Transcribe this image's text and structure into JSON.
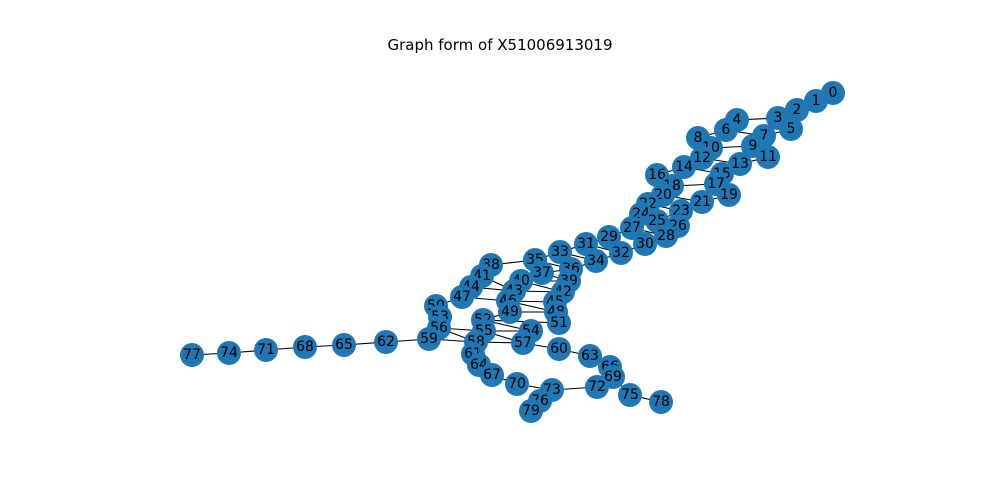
{
  "title": "Graph form of X51006913019",
  "graph": {
    "node_color": "#1f77b4",
    "edge_color": "#000000",
    "nodes": [
      "0",
      "1",
      "2",
      "3",
      "4",
      "5",
      "6",
      "7",
      "8",
      "9",
      "10",
      "11",
      "12",
      "13",
      "14",
      "15",
      "16",
      "17",
      "18",
      "19",
      "20",
      "21",
      "22",
      "23",
      "24",
      "25",
      "26",
      "27",
      "28",
      "29",
      "30",
      "31",
      "32",
      "33",
      "34",
      "35",
      "36",
      "37",
      "38",
      "39",
      "40",
      "41",
      "42",
      "43",
      "44",
      "45",
      "46",
      "47",
      "48",
      "49",
      "50",
      "51",
      "52",
      "53",
      "54",
      "55",
      "56",
      "57",
      "58",
      "59",
      "60",
      "61",
      "62",
      "63",
      "64",
      "65",
      "66",
      "67",
      "68",
      "69",
      "70",
      "71",
      "72",
      "73",
      "74",
      "75",
      "76",
      "77",
      "78",
      "79"
    ],
    "edges": [
      [
        "0",
        "1"
      ],
      [
        "1",
        "2"
      ],
      [
        "2",
        "3"
      ],
      [
        "3",
        "4"
      ],
      [
        "3",
        "5"
      ],
      [
        "4",
        "6"
      ],
      [
        "5",
        "7"
      ],
      [
        "6",
        "7"
      ],
      [
        "6",
        "8"
      ],
      [
        "7",
        "9"
      ],
      [
        "8",
        "10"
      ],
      [
        "9",
        "10"
      ],
      [
        "9",
        "11"
      ],
      [
        "10",
        "12"
      ],
      [
        "11",
        "13"
      ],
      [
        "12",
        "13"
      ],
      [
        "12",
        "14"
      ],
      [
        "13",
        "15"
      ],
      [
        "14",
        "15"
      ],
      [
        "14",
        "16"
      ],
      [
        "15",
        "17"
      ],
      [
        "16",
        "18"
      ],
      [
        "17",
        "18"
      ],
      [
        "17",
        "19"
      ],
      [
        "18",
        "20"
      ],
      [
        "19",
        "21"
      ],
      [
        "20",
        "21"
      ],
      [
        "20",
        "22"
      ],
      [
        "21",
        "23"
      ],
      [
        "22",
        "23"
      ],
      [
        "22",
        "24"
      ],
      [
        "23",
        "25"
      ],
      [
        "24",
        "25"
      ],
      [
        "24",
        "27"
      ],
      [
        "25",
        "26"
      ],
      [
        "26",
        "28"
      ],
      [
        "27",
        "28"
      ],
      [
        "27",
        "29"
      ],
      [
        "28",
        "30"
      ],
      [
        "29",
        "31"
      ],
      [
        "30",
        "32"
      ],
      [
        "31",
        "32"
      ],
      [
        "31",
        "33"
      ],
      [
        "32",
        "34"
      ],
      [
        "33",
        "34"
      ],
      [
        "33",
        "35"
      ],
      [
        "34",
        "36"
      ],
      [
        "35",
        "36"
      ],
      [
        "35",
        "38"
      ],
      [
        "36",
        "37"
      ],
      [
        "37",
        "39"
      ],
      [
        "38",
        "41"
      ],
      [
        "39",
        "40"
      ],
      [
        "40",
        "42"
      ],
      [
        "41",
        "43"
      ],
      [
        "42",
        "43"
      ],
      [
        "43",
        "44"
      ],
      [
        "41",
        "44"
      ],
      [
        "44",
        "47"
      ],
      [
        "42",
        "45"
      ],
      [
        "45",
        "46"
      ],
      [
        "46",
        "47"
      ],
      [
        "46",
        "48"
      ],
      [
        "47",
        "50"
      ],
      [
        "48",
        "49"
      ],
      [
        "48",
        "51"
      ],
      [
        "49",
        "52"
      ],
      [
        "50",
        "53"
      ],
      [
        "51",
        "52"
      ],
      [
        "52",
        "54"
      ],
      [
        "53",
        "56"
      ],
      [
        "54",
        "55"
      ],
      [
        "55",
        "56"
      ],
      [
        "55",
        "57"
      ],
      [
        "56",
        "58"
      ],
      [
        "57",
        "58"
      ],
      [
        "57",
        "60"
      ],
      [
        "58",
        "59"
      ],
      [
        "58",
        "61"
      ],
      [
        "59",
        "62"
      ],
      [
        "60",
        "63"
      ],
      [
        "61",
        "64"
      ],
      [
        "62",
        "65"
      ],
      [
        "63",
        "66"
      ],
      [
        "64",
        "67"
      ],
      [
        "65",
        "68"
      ],
      [
        "66",
        "69"
      ],
      [
        "67",
        "70"
      ],
      [
        "68",
        "71"
      ],
      [
        "69",
        "72"
      ],
      [
        "69",
        "75"
      ],
      [
        "70",
        "73"
      ],
      [
        "71",
        "74"
      ],
      [
        "72",
        "73"
      ],
      [
        "73",
        "76"
      ],
      [
        "74",
        "77"
      ],
      [
        "75",
        "78"
      ],
      [
        "76",
        "79"
      ]
    ]
  }
}
